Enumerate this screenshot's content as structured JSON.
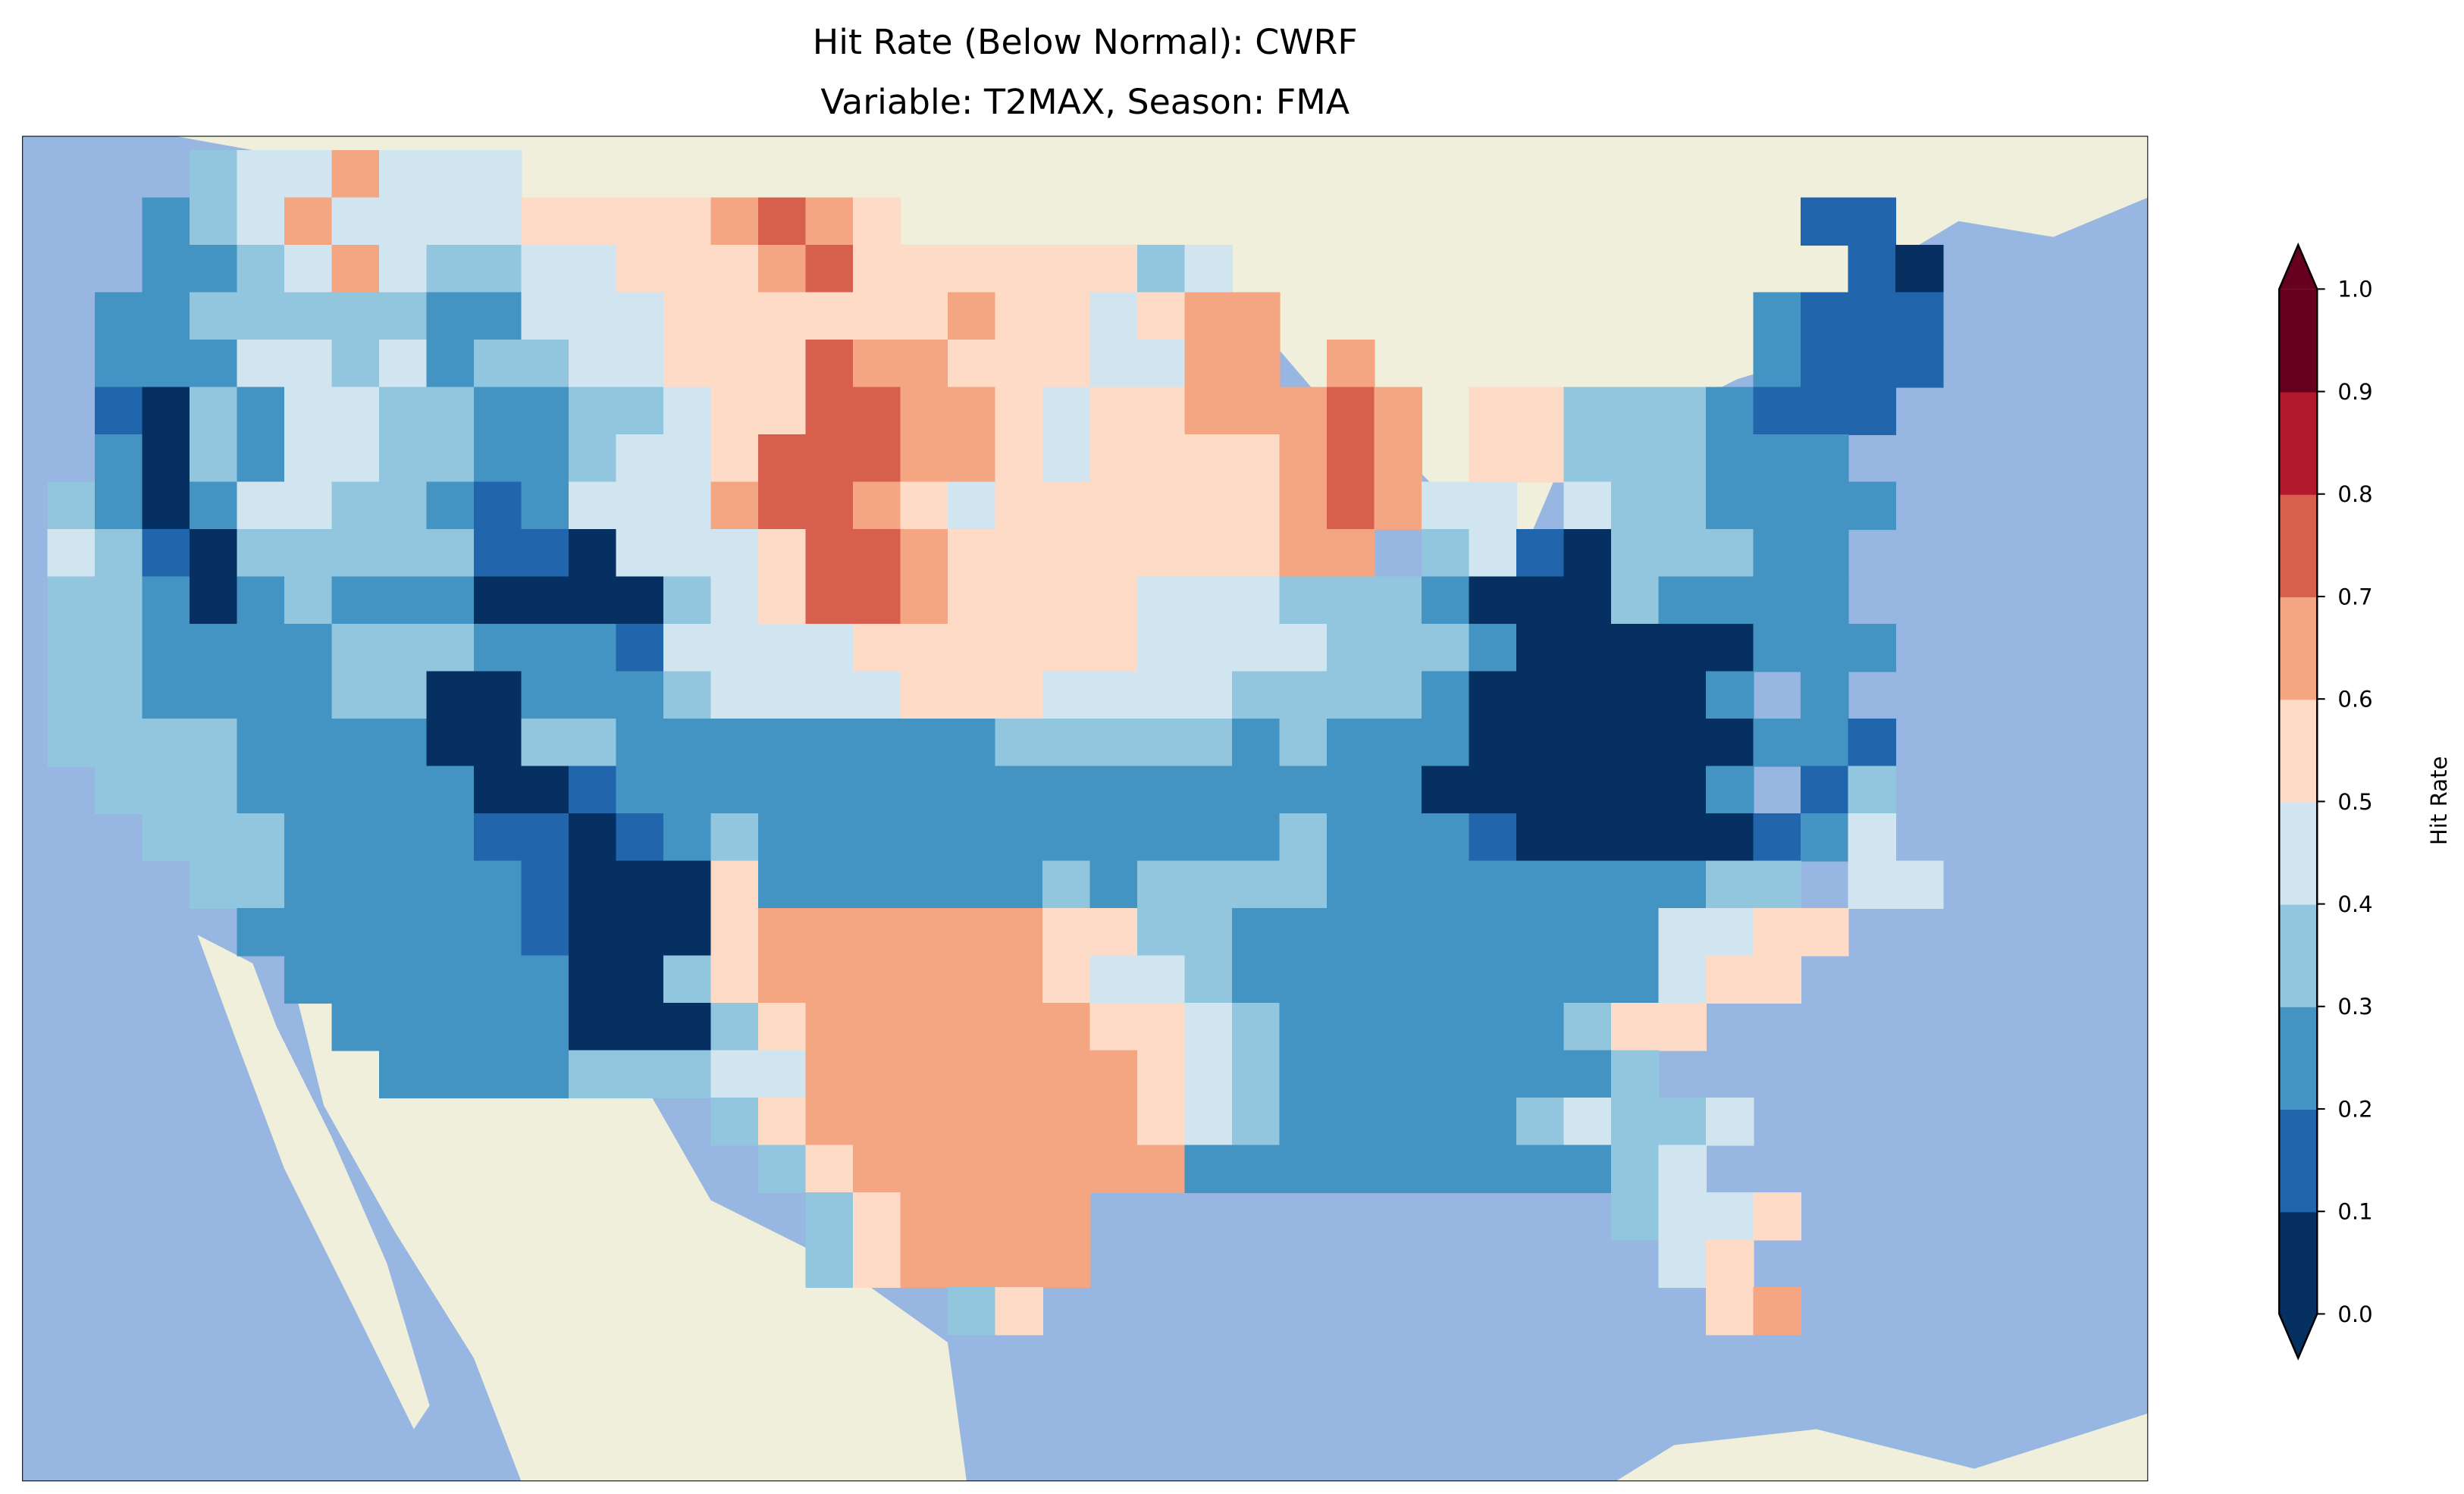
{
  "chart_data": {
    "type": "heatmap",
    "title": "Hit Rate (Below Normal): CWRF",
    "subtitle": "Variable: T2MAX, Season: FMA",
    "colorbar": {
      "label": "Hit Rate",
      "range": [
        0.0,
        1.0
      ],
      "extend": "both",
      "tick_labels": [
        "0.0",
        "0.1",
        "0.2",
        "0.3",
        "0.4",
        "0.5",
        "0.6",
        "0.7",
        "0.8",
        "0.9",
        "1.0"
      ],
      "bin_colors": [
        "#053061",
        "#2166ac",
        "#4393c3",
        "#92c5de",
        "#d1e5f0",
        "#fddbc7",
        "#f4a582",
        "#d6604d",
        "#b2182b",
        "#67001f"
      ]
    },
    "grid_note": "each char = hit-rate bin index (0 = 0.0-0.1 ... 9 = 0.9-1.0), '.' = no data",
    "grid": [
      "...3446444..............................",
      "..2346444455556765...................11.",
      "..22346433445556755555534.............10",
      ".2233333224445555556554566..........2111",
      ".2224434233445557665554466.6........2111",
      ".1032443322334557766545566676.553332111.",
      ".2032443322344577766545555676.55333222..",
      "3202443321244467765455555567644 4332222.",
      "4310333331104445776555555566.341033322..",
      "33202322200003457765555444333200032222..",
      "332222333222144445555554444333200000222.",
      "332222330022234444555444433332000002 2..",
      "333322220033222222223333323222000000221.",
      ".33322222001222222222222222220000002 13.",
      "..3332222110123222222222223222100000124.",
      "...3322222100052222223233332222222233 44",
      "....2222221000566666655332222222224455..",
      ".....22222200356666665443222222222455...",
      "......22222000356666665543222222355....",
      ".......222233344666666654322222223......",
      "..............3566666665432222234334....",
      "...............35666666622222222234.....",
      "................356666...........3445...",
      "................356666............45....",
      "...................35..............56..."
    ],
    "map_background": {
      "ocean": "#97b6e1",
      "land": "#efefdb"
    }
  }
}
